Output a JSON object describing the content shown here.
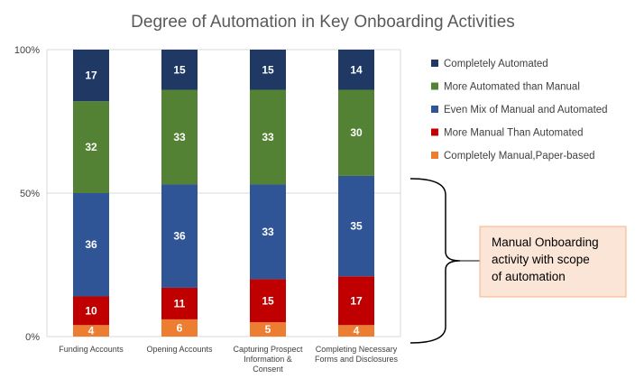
{
  "chart_data": {
    "type": "bar",
    "stacked": true,
    "title": "Degree of Automation in Key Onboarding Activities",
    "categories": [
      [
        "Funding Accounts"
      ],
      [
        "Opening Accounts"
      ],
      [
        "Capturing Prospect",
        "Information &",
        "Consent"
      ],
      [
        "Completing Necessary",
        "Forms and Disclosures"
      ]
    ],
    "y_ticks": [
      "100%",
      "50%",
      "0%"
    ],
    "ylim": [
      0,
      100
    ],
    "grid": true,
    "legend_position": "right",
    "series": [
      {
        "name": "Completely Manual,Paper-based",
        "color": "#ed7d31",
        "values": [
          4,
          6,
          5,
          4
        ]
      },
      {
        "name": "More Manual Than Automated",
        "color": "#c00000",
        "values": [
          10,
          11,
          15,
          17
        ]
      },
      {
        "name": "Even Mix of Manual and Automated",
        "color": "#2f5597",
        "values": [
          36,
          36,
          33,
          35
        ]
      },
      {
        "name": "More Automated than Manual",
        "color": "#548235",
        "values": [
          32,
          33,
          33,
          30
        ]
      },
      {
        "name": "Completely Automated",
        "color": "#203864",
        "values": [
          17,
          15,
          15,
          14
        ]
      }
    ],
    "annotation": {
      "lines": [
        "Manual Onboarding",
        "activity with scope",
        "of automation"
      ],
      "box_fill": "#fbe5d6",
      "box_stroke": "#f4b183"
    }
  }
}
